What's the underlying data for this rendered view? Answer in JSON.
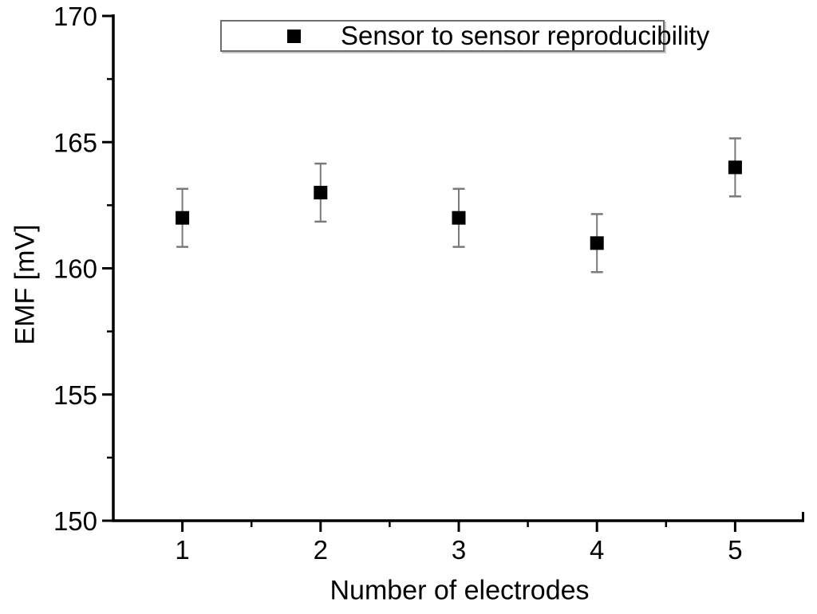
{
  "chart_data": {
    "type": "scatter",
    "title": "",
    "xlabel": "Number of electrodes",
    "ylabel": "EMF [mV]",
    "legend_label": "Sensor to sensor reproducibility",
    "legend_position": "top-center",
    "x": [
      1,
      2,
      3,
      4,
      5
    ],
    "y": [
      162,
      163,
      162,
      161,
      164
    ],
    "yerr": [
      1.15,
      1.15,
      1.15,
      1.15,
      1.15
    ],
    "xlim": [
      0.5,
      5.5
    ],
    "ylim": [
      150,
      170
    ],
    "x_major_ticks": [
      1,
      2,
      3,
      4,
      5
    ],
    "x_minor_ticks": [
      1.5,
      2.5,
      3.5,
      4.5
    ],
    "y_major_ticks": [
      150,
      155,
      160,
      165,
      170
    ],
    "y_minor_ticks": [
      152.5,
      157.5,
      162.5,
      167.5
    ],
    "grid": "off",
    "marker": "filled-square",
    "colors": {
      "marker": "#000000",
      "errorbar": "#7a7a7a",
      "axis": "#000000",
      "text": "#000000",
      "legend_border": "#6e6e6e",
      "background": "#ffffff"
    }
  }
}
